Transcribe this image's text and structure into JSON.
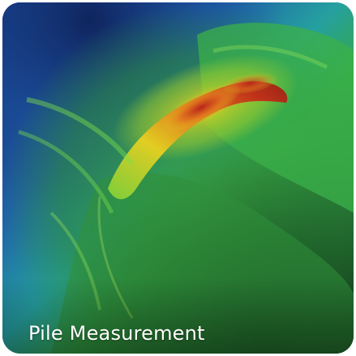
{
  "card": {
    "title": "Pile Measurement",
    "image_icon": "pile-heatmap-image",
    "colors": {
      "deep": "#17306e",
      "low": "#1f6fb0",
      "mid": "#36b34a",
      "high": "#e6d21f",
      "peak": "#c5281a",
      "caption_text": "#ffffff"
    }
  }
}
